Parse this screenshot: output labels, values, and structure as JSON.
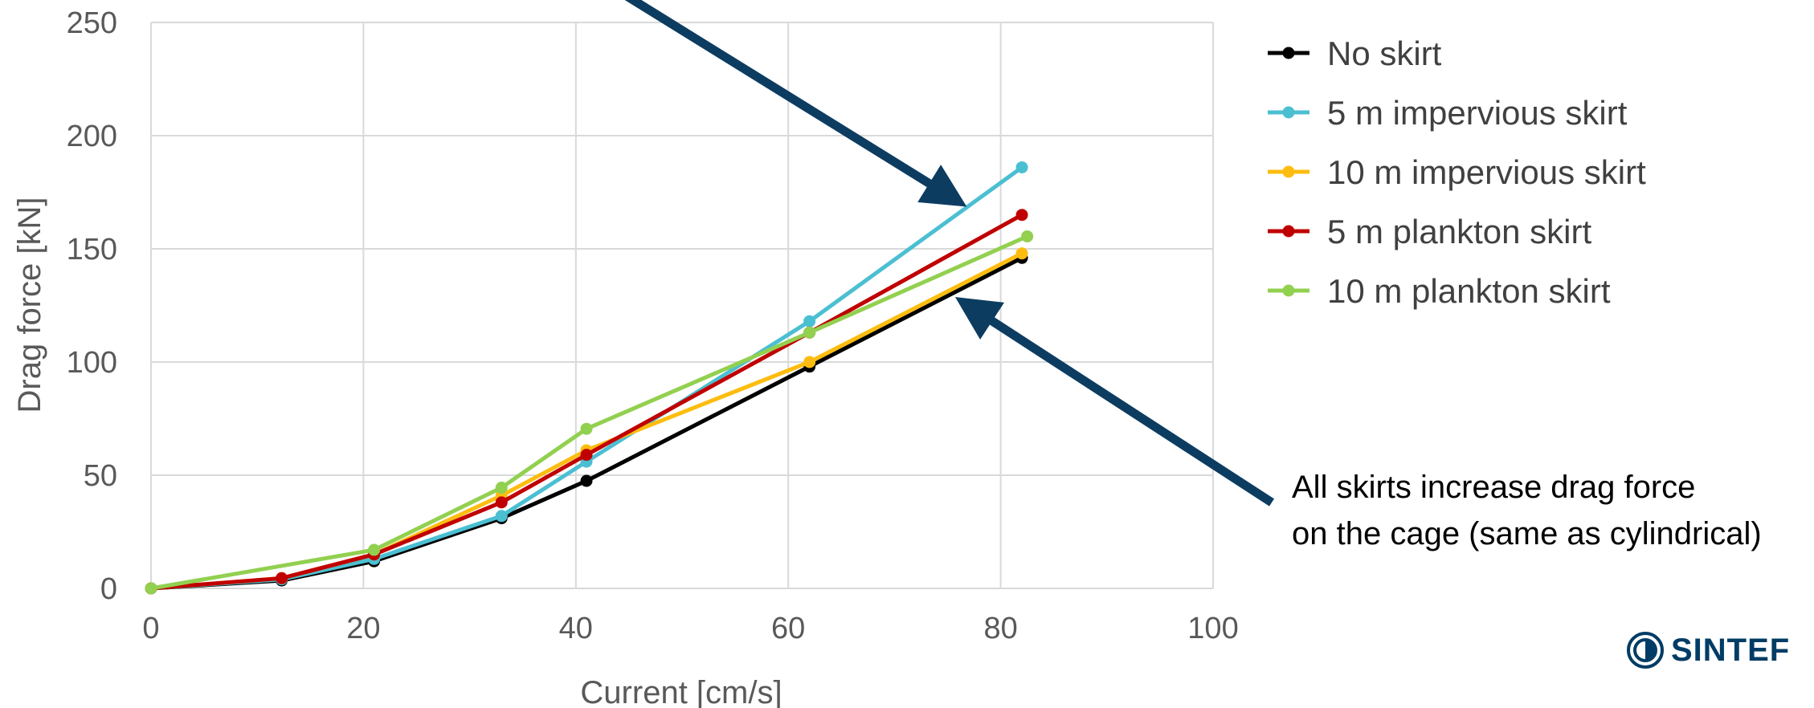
{
  "chart_data": {
    "type": "line",
    "xlabel": "Current [cm/s]",
    "ylabel": "Drag force [kN]",
    "xlim": [
      0,
      100
    ],
    "ylim": [
      0,
      250
    ],
    "x_ticks": [
      0,
      20,
      40,
      60,
      80,
      100
    ],
    "y_ticks": [
      0,
      50,
      100,
      150,
      200,
      250
    ],
    "grid": true,
    "legend_position": "right",
    "series": [
      {
        "name": "No skirt",
        "color": "#000000",
        "x": [
          0,
          12.3,
          21,
          33,
          41,
          62,
          82
        ],
        "y": [
          0,
          3.5,
          12,
          31,
          47.5,
          98,
          146
        ]
      },
      {
        "name": "5 m impervious skirt",
        "color": "#4bbfd2",
        "x": [
          0,
          12.3,
          21,
          33,
          41,
          62,
          82
        ],
        "y": [
          0,
          4,
          13,
          32,
          56,
          118,
          186
        ]
      },
      {
        "name": "10 m impervious skirt",
        "color": "#fdbd10",
        "x": [
          0,
          12.3,
          21,
          33,
          41,
          62,
          82
        ],
        "y": [
          0,
          4.5,
          15,
          41,
          61,
          100,
          148
        ]
      },
      {
        "name": "5 m plankton skirt",
        "color": "#c00000",
        "x": [
          0,
          12.3,
          21,
          33,
          41,
          62,
          82
        ],
        "y": [
          0,
          4.5,
          15,
          38,
          59,
          113,
          165
        ]
      },
      {
        "name": "10 m plankton skirt",
        "color": "#92d050",
        "x": [
          0,
          21,
          33,
          41,
          62,
          82.5
        ],
        "y": [
          0,
          17,
          44.5,
          70.5,
          113,
          155.5
        ]
      }
    ]
  },
  "annotation": {
    "line1": "All skirts increase drag force",
    "line2": "on the cage (same as cylindrical)"
  },
  "arrow_color": "#0d3c61",
  "logo": {
    "text": "SINTEF",
    "color": "#003c65"
  }
}
